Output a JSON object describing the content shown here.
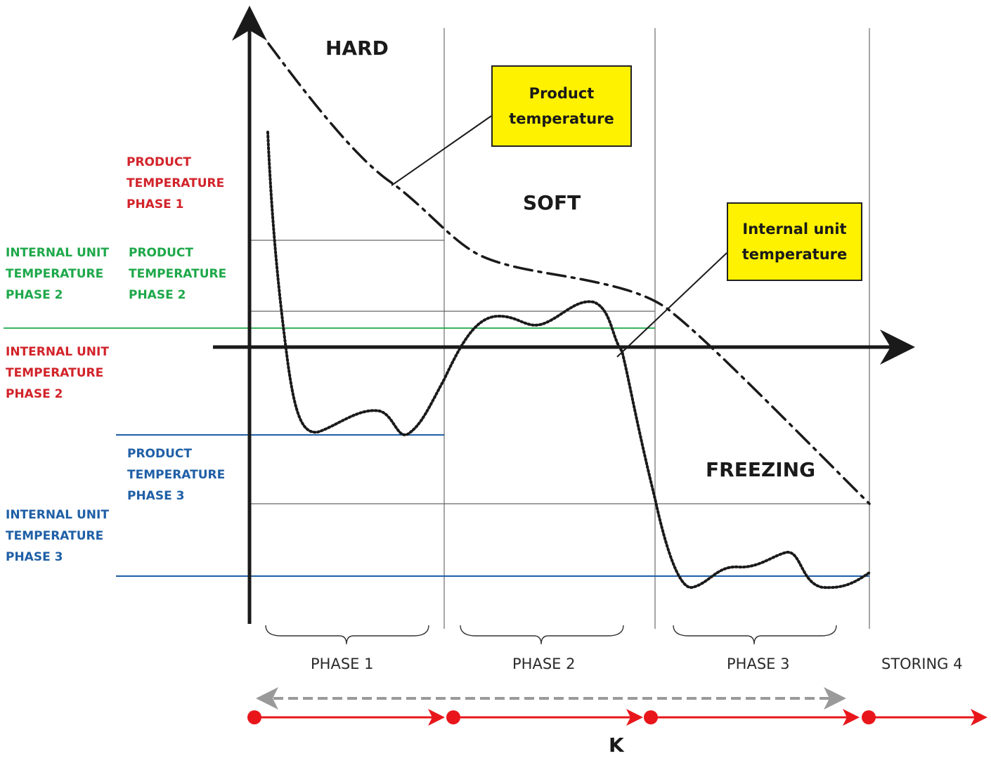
{
  "zones": {
    "hard": "HARD",
    "soft": "SOFT",
    "freezing": "FREEZING"
  },
  "callouts": {
    "product_temperature": [
      "Product",
      "temperature"
    ],
    "internal_unit_temperature": [
      "Internal unit",
      "temperature"
    ]
  },
  "left_labels": [
    {
      "lines": [
        "PRODUCT",
        "TEMPERATURE",
        "PHASE 1"
      ],
      "color": "#d2232a"
    },
    {
      "lines": [
        "INTERNAL UNIT",
        "TEMPERATURE",
        "PHASE 2"
      ],
      "color": "#1ea84a"
    },
    {
      "lines": [
        "PRODUCT",
        "TEMPERATURE",
        "PHASE 2"
      ],
      "color": "#1ea84a"
    },
    {
      "lines": [
        "INTERNAL UNIT",
        "TEMPERATURE",
        "PHASE 2"
      ],
      "color": "#d2232a"
    },
    {
      "lines": [
        "PRODUCT",
        "TEMPERATURE",
        "PHASE 3"
      ],
      "color": "#1f5fa6"
    },
    {
      "lines": [
        "INTERNAL UNIT",
        "TEMPERATURE",
        "PHASE 3"
      ],
      "color": "#1f5fa6"
    }
  ],
  "phases": [
    "PHASE 1",
    "PHASE 2",
    "PHASE 3",
    "STORING 4"
  ],
  "timeline_label": "K",
  "colors": {
    "red": "#d2232a",
    "green": "#1ea84a",
    "blue": "#1f5fa6",
    "callout_fill": "#fff200",
    "timeline": "#e8161b",
    "dashed_arrow": "#9a9a9a"
  }
}
